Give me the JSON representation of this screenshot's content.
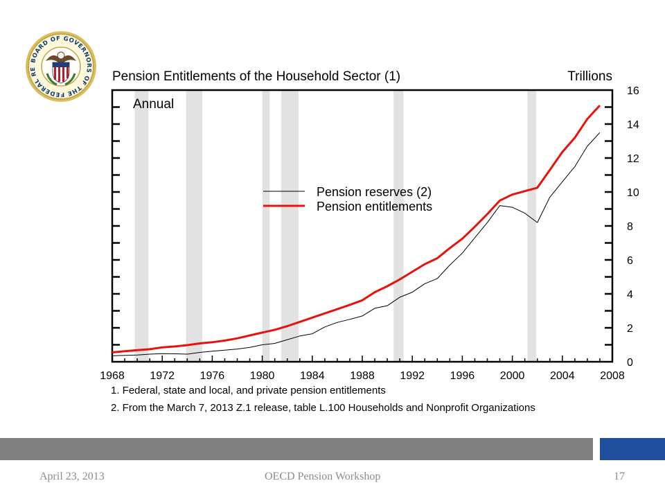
{
  "seal": {
    "text": "BOARD OF GOVERNORS OF THE FEDERAL RESERVE SYSTEM",
    "colors": {
      "ring": "#c5a84a",
      "text": "#0b3c73",
      "shield_red": "#b21e2b",
      "shield_blue": "#1f3f7a"
    }
  },
  "chart_data": {
    "type": "line",
    "title": "Pension Entitlements of the Household Sector (1)",
    "unit_label": "Trillions",
    "frequency_label": "Annual",
    "xlim": [
      1968,
      2008
    ],
    "ylim": [
      0,
      16
    ],
    "x_ticks": [
      "1968",
      "1972",
      "1976",
      "1980",
      "1984",
      "1988",
      "1992",
      "1996",
      "2000",
      "2004",
      "2008"
    ],
    "y_ticks": [
      "0",
      "2",
      "4",
      "6",
      "8",
      "10",
      "12",
      "14",
      "16"
    ],
    "y_axis_side": "right",
    "recession_shading": [
      [
        1969.8,
        1970.9
      ],
      [
        1973.9,
        1975.2
      ],
      [
        1980.0,
        1980.6
      ],
      [
        1981.5,
        1982.9
      ],
      [
        1990.5,
        1991.3
      ],
      [
        2001.2,
        2001.9
      ]
    ],
    "legend_position": "center",
    "series": [
      {
        "name": "Pension reserves (2)",
        "color": "#000000",
        "x": [
          1968,
          1969,
          1970,
          1971,
          1972,
          1973,
          1974,
          1975,
          1976,
          1977,
          1978,
          1979,
          1980,
          1981,
          1982,
          1983,
          1984,
          1985,
          1986,
          1987,
          1988,
          1989,
          1990,
          1991,
          1992,
          1993,
          1994,
          1995,
          1996,
          1997,
          1998,
          1999,
          2000,
          2001,
          2002,
          2003,
          2004,
          2005,
          2006,
          2007
        ],
        "y": [
          0.35,
          0.38,
          0.4,
          0.45,
          0.48,
          0.47,
          0.45,
          0.55,
          0.62,
          0.68,
          0.75,
          0.85,
          1.0,
          1.08,
          1.3,
          1.52,
          1.65,
          2.05,
          2.32,
          2.5,
          2.7,
          3.15,
          3.3,
          3.8,
          4.1,
          4.6,
          4.9,
          5.7,
          6.4,
          7.3,
          8.2,
          9.2,
          9.1,
          8.75,
          8.2,
          9.7,
          10.6,
          11.5,
          12.7,
          13.5
        ]
      },
      {
        "name": "Pension entitlements",
        "color": "#e8120c",
        "x": [
          1968,
          1969,
          1970,
          1971,
          1972,
          1973,
          1974,
          1975,
          1976,
          1977,
          1978,
          1979,
          1980,
          1981,
          1982,
          1983,
          1984,
          1985,
          1986,
          1987,
          1988,
          1989,
          1990,
          1991,
          1992,
          1993,
          1994,
          1995,
          1996,
          1997,
          1998,
          1999,
          2000,
          2001,
          2002,
          2003,
          2004,
          2005,
          2006,
          2007
        ],
        "y": [
          0.55,
          0.62,
          0.68,
          0.74,
          0.85,
          0.9,
          0.98,
          1.08,
          1.15,
          1.25,
          1.38,
          1.55,
          1.72,
          1.88,
          2.1,
          2.35,
          2.6,
          2.85,
          3.1,
          3.35,
          3.62,
          4.1,
          4.45,
          4.85,
          5.3,
          5.75,
          6.1,
          6.7,
          7.25,
          7.95,
          8.7,
          9.5,
          9.85,
          10.05,
          10.25,
          11.3,
          12.35,
          13.2,
          14.3,
          15.1
        ]
      }
    ]
  },
  "notes": [
    "1. Federal, state and local, and private pension entitlements",
    "2. From the March 7, 2013 Z.1 release, table L.100 Households and Nonprofit Organizations"
  ],
  "footer": {
    "date": "April 23, 2013",
    "event": "OECD Pension Workshop",
    "page": "17",
    "bar_gray": "#808080",
    "bar_blue": "#1f4e9c"
  }
}
